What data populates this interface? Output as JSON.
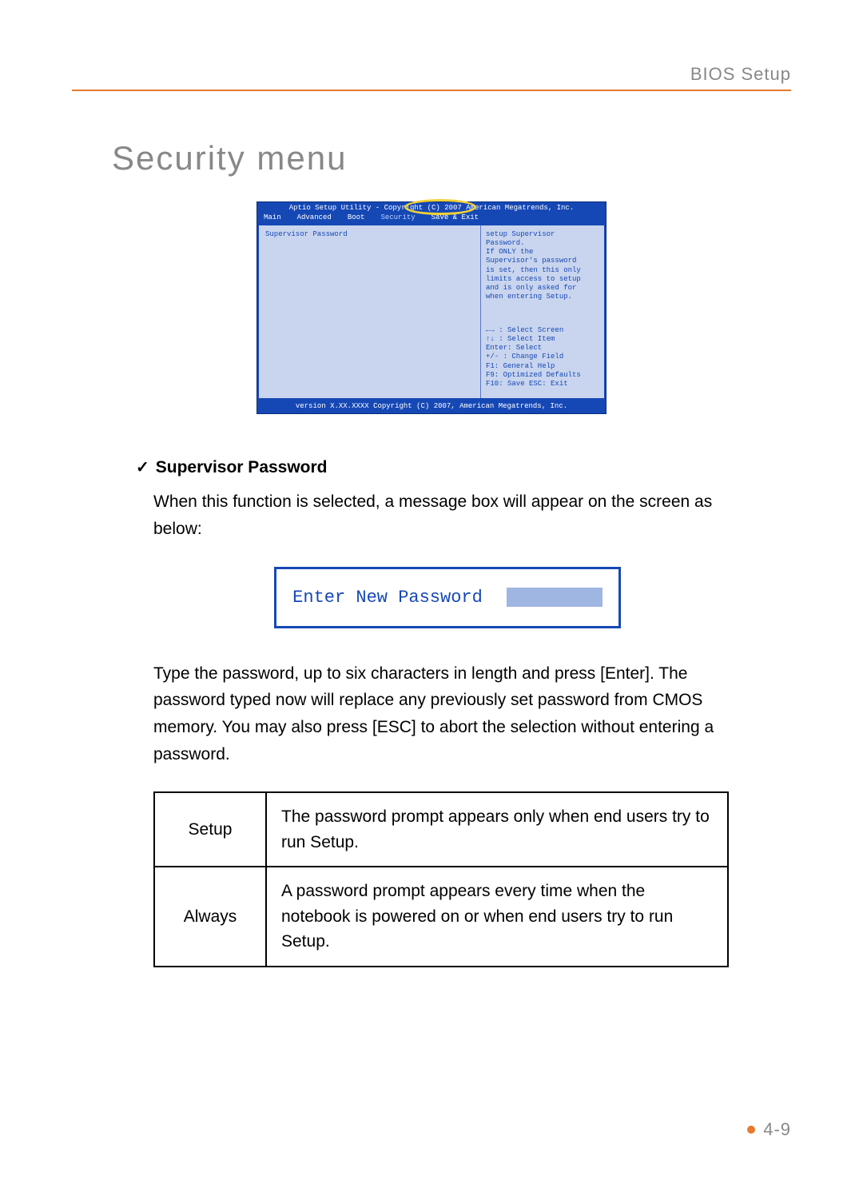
{
  "header": {
    "label": "BIOS Setup"
  },
  "section": {
    "title": "Security menu"
  },
  "bios": {
    "top_line": "Aptio Setup Utility - Copyright (C) 2007 American Megatrends, Inc.",
    "tabs": {
      "main": "Main",
      "advanced": "Advanced",
      "boot": "Boot",
      "security": "Security",
      "saveexit": "Save & Exit"
    },
    "left_item": "Supervisor Password",
    "help_lines": [
      "setup Supervisor",
      "Password.",
      "If ONLY the",
      "Supervisor's password",
      "is set, then this only",
      "limits access to setup",
      "and is only asked for",
      "when entering Setup."
    ],
    "nav_lines": [
      "←→ : Select Screen",
      "↑↓ : Select Item",
      "Enter: Select",
      "+/- : Change Field",
      "F1:  General Help",
      "F9:  Optimized Defaults",
      "F10: Save ESC: Exit"
    ],
    "footer": "version X.XX.XXXX Copyright (C) 2007, American Megatrends, Inc."
  },
  "check": {
    "mark": "✓",
    "heading": "Supervisor Password"
  },
  "para1": "When this function is selected, a message box will appear on the screen as below:",
  "pwbox": {
    "label": "Enter New Password"
  },
  "para2": "Type the password, up to six characters in length and press [Enter]. The password typed now will replace any previously set password from CMOS memory. You may also press [ESC] to abort the selection without entering a password.",
  "table": {
    "rows": [
      {
        "key": "Setup",
        "desc": "The password prompt appears only when end users try to run Setup."
      },
      {
        "key": "Always",
        "desc": "A password prompt appears every time when the notebook is powered on or when end users try to run Setup."
      }
    ]
  },
  "footer": {
    "pagenum": "4-9"
  }
}
